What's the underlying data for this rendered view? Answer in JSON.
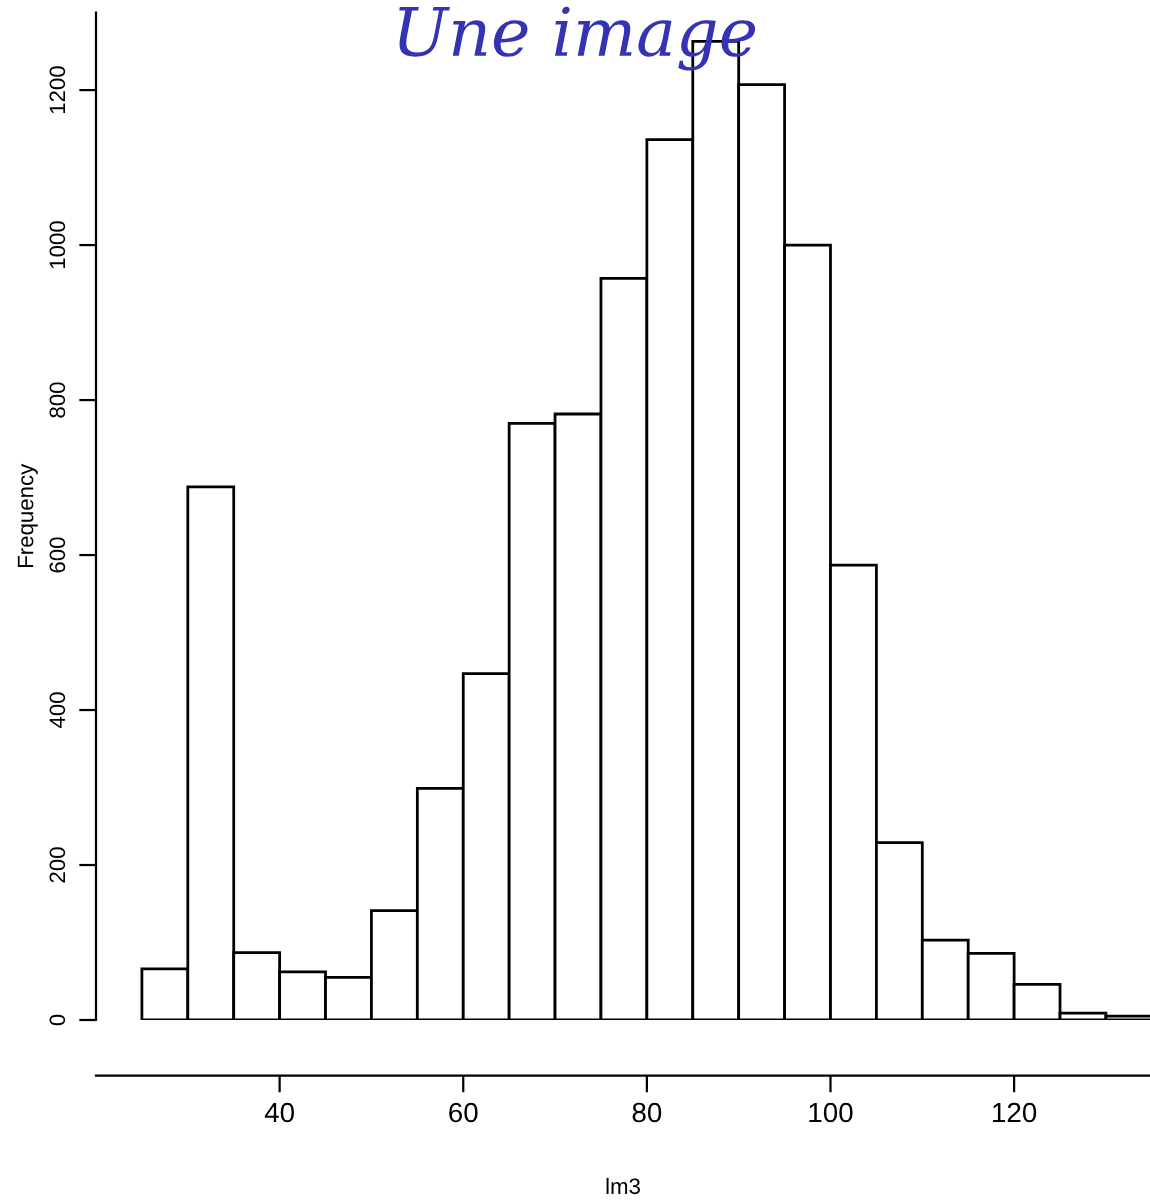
{
  "chart_data": {
    "type": "histogram",
    "title": "Une image",
    "xlabel": "lm3",
    "ylabel": "Frequency",
    "bins": [
      25,
      30,
      35,
      40,
      45,
      50,
      55,
      60,
      65,
      70,
      75,
      80,
      85,
      90,
      95,
      100,
      105,
      110,
      115,
      120,
      125,
      130,
      135
    ],
    "values": [
      66,
      688,
      87,
      62,
      55,
      141,
      299,
      447,
      770,
      782,
      957,
      1136,
      1263,
      1207,
      1000,
      587,
      229,
      103,
      86,
      46,
      9,
      5
    ],
    "color": "#ffffff",
    "xlim": [
      20,
      134.8
    ],
    "ylim": [
      0,
      1300
    ],
    "xticks": [
      40,
      60,
      80,
      100,
      120
    ],
    "yticks": [
      0,
      200,
      400,
      600,
      800,
      1000,
      1200
    ],
    "grid": false,
    "legend": false
  }
}
